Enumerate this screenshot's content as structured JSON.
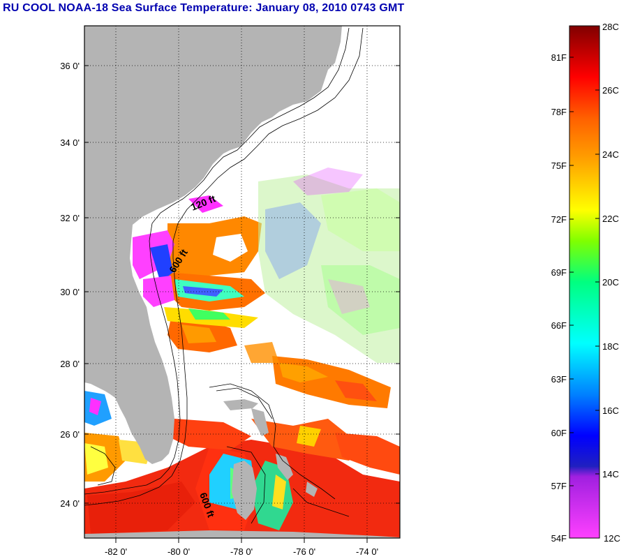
{
  "title": "RU COOL  NOAA-18  Sea Surface Temperature:  January 08, 2010 0743 GMT",
  "map": {
    "lat_labels": [
      "36 0'",
      "34 0'",
      "32 0'",
      "30 0'",
      "28 0'",
      "26 0'",
      "24 0'"
    ],
    "lon_labels": [
      "-82 0'",
      "-80 0'",
      "-78 0'",
      "-76 0'",
      "-74 0'"
    ],
    "contour_labels": [
      "120 ft",
      "600 ft",
      "600 ft"
    ],
    "colors": {
      "land": "#b4b4b4",
      "water_no_data": "#ffffff",
      "grid": "#000000"
    }
  },
  "colorbar": {
    "fahrenheit_labels": [
      "81F",
      "78F",
      "75F",
      "72F",
      "69F",
      "66F",
      "63F",
      "60F",
      "57F",
      "54F"
    ],
    "celsius_labels": [
      "28C",
      "26C",
      "24C",
      "22C",
      "20C",
      "18C",
      "16C",
      "14C",
      "12C"
    ],
    "range_c": [
      12,
      28
    ]
  }
}
